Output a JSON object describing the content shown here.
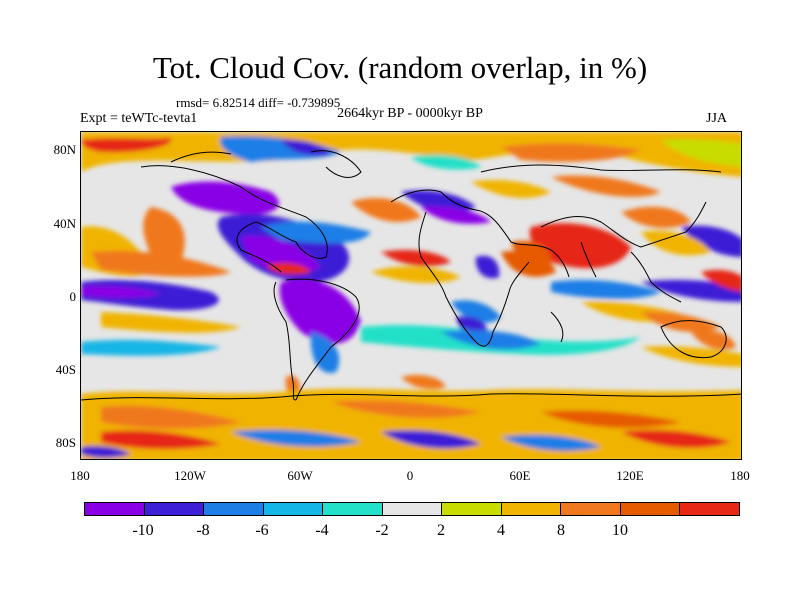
{
  "title": "Tot. Cloud Cov. (random overlap, in %)",
  "stats": "rmsd= 6.82514 diff= -0.739895",
  "period": "2664kyr BP - 0000kyr BP",
  "experiment": "Expt = teWTc-tevta1",
  "season": "JJA",
  "lat_labels": [
    "80N",
    "40N",
    "0",
    "40S",
    "80S"
  ],
  "lon_labels": [
    "180",
    "120W",
    "60W",
    "0",
    "60E",
    "120E",
    "180"
  ],
  "colorbar": {
    "colors": [
      "#8a00e6",
      "#3c1fd6",
      "#1e7ee6",
      "#13b6e6",
      "#23e0c8",
      "#e6e6e6",
      "#c8dc00",
      "#f0b400",
      "#f0781e",
      "#e65a00",
      "#e62814"
    ],
    "labels": [
      "-10",
      "-8",
      "-6",
      "-4",
      "-2",
      "2",
      "4",
      "8",
      "10"
    ]
  },
  "map": {
    "background": "#e6e6e6",
    "coastline_color": "#000000"
  }
}
